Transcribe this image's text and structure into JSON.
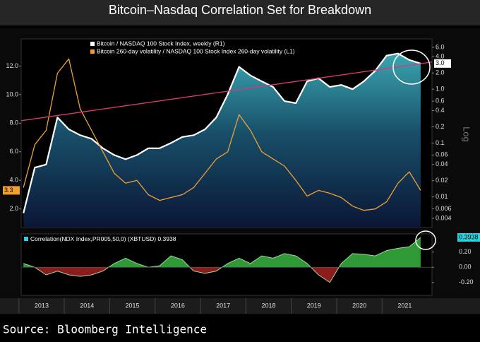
{
  "title": "Bitcoin–Nasdaq Correlation Set for Breakdown",
  "source": "Source: Bloomberg Intelligence",
  "chart_data": [
    {
      "type": "line",
      "x": [
        2013.1,
        2013.35,
        2013.6,
        2013.85,
        2014.1,
        2014.35,
        2014.6,
        2014.85,
        2015.1,
        2015.35,
        2015.6,
        2015.85,
        2016.1,
        2016.35,
        2016.6,
        2016.85,
        2017.1,
        2017.35,
        2017.6,
        2017.85,
        2018.1,
        2018.35,
        2018.6,
        2018.85,
        2019.1,
        2019.35,
        2019.6,
        2019.85,
        2020.1,
        2020.35,
        2020.6,
        2020.85,
        2021.1,
        2021.35,
        2021.6,
        2021.85
      ],
      "xlim": [
        2013.05,
        2022.1
      ],
      "ylim": [
        0.7,
        13.9
      ],
      "yticks": [
        {
          "value": 2,
          "label": "2.0"
        },
        {
          "value": 4,
          "label": "4.0"
        },
        {
          "value": 6,
          "label": "6.0"
        },
        {
          "value": 8,
          "label": "8.0"
        },
        {
          "value": 10,
          "label": "10.0"
        },
        {
          "value": 12,
          "label": "12.0"
        }
      ],
      "y2lim": [
        0.0027,
        8.6
      ],
      "y2_scale": "log",
      "y2_label": "Log",
      "y2ticks": [
        {
          "value": 6,
          "label": "6.0"
        },
        {
          "value": 4,
          "label": "4.0"
        },
        {
          "value": 2,
          "label": "2.0"
        },
        {
          "value": 1,
          "label": "1.0"
        },
        0.6,
        0.4,
        0.2,
        0.1,
        0.06,
        0.04,
        0.02,
        0.01,
        0.006,
        0.004
      ],
      "series": [
        {
          "name": "Bitcoin / NASDAQ 100 Stock Index, weekly (R1)",
          "color": "#ffffff",
          "axis": "y2",
          "fill": true,
          "values": [
            0.005,
            0.035,
            0.04,
            0.3,
            0.18,
            0.14,
            0.12,
            0.08,
            0.06,
            0.05,
            0.06,
            0.08,
            0.08,
            0.1,
            0.13,
            0.14,
            0.18,
            0.3,
            0.8,
            2.6,
            1.8,
            1.4,
            1.1,
            0.6,
            0.55,
            1.4,
            1.6,
            1.1,
            1.2,
            1.0,
            1.4,
            2.2,
            4.2,
            4.6,
            3.5,
            3.0
          ],
          "value_labels": [
            null,
            null,
            null,
            null,
            null,
            null,
            null,
            null,
            null,
            null,
            null,
            null,
            null,
            null,
            null,
            null,
            null,
            null,
            null,
            null,
            null,
            null,
            null,
            null,
            null,
            null,
            null,
            null,
            null,
            null,
            null,
            null,
            null,
            null,
            null,
            "3.0"
          ]
        },
        {
          "name": "Bitcoin 260-day volatility / NASDAQ 100 Stock Index 260-day volatility (L1)",
          "color": "#f0a030",
          "axis": "y",
          "fill": false,
          "values": [
            3.5,
            6.5,
            7.5,
            11.5,
            12.5,
            9.0,
            7.5,
            6.0,
            4.5,
            3.8,
            4.0,
            3.0,
            2.6,
            2.8,
            3.0,
            3.5,
            4.5,
            5.5,
            6.0,
            8.6,
            7.5,
            6.0,
            5.5,
            5.0,
            4.0,
            2.9,
            3.3,
            3.1,
            2.8,
            2.2,
            1.9,
            2.0,
            2.5,
            3.8,
            4.6,
            3.3
          ],
          "value_labels": [
            null,
            null,
            null,
            null,
            null,
            null,
            null,
            null,
            null,
            null,
            null,
            null,
            null,
            null,
            null,
            null,
            null,
            null,
            null,
            null,
            null,
            null,
            null,
            null,
            null,
            null,
            null,
            null,
            null,
            null,
            null,
            null,
            null,
            null,
            null,
            "3.3"
          ]
        }
      ],
      "trend_line": {
        "values": [
          0.26,
          3.2
        ],
        "color": "#d63a78",
        "axis": "y2"
      }
    },
    {
      "type": "area",
      "x": [
        2013.1,
        2013.35,
        2013.6,
        2013.85,
        2014.1,
        2014.35,
        2014.6,
        2014.85,
        2015.1,
        2015.35,
        2015.6,
        2015.85,
        2016.1,
        2016.35,
        2016.6,
        2016.85,
        2017.1,
        2017.35,
        2017.6,
        2017.85,
        2018.1,
        2018.35,
        2018.6,
        2018.85,
        2019.1,
        2019.35,
        2019.6,
        2019.85,
        2020.1,
        2020.35,
        2020.6,
        2020.85,
        2021.1,
        2021.35,
        2021.6,
        2021.85
      ],
      "xlim": [
        2013.05,
        2022.1
      ],
      "xticks": [
        {
          "value": 2013,
          "label": "2013"
        },
        {
          "value": 2014,
          "label": "2014"
        },
        {
          "value": 2015,
          "label": "2015"
        },
        {
          "value": 2016,
          "label": "2016"
        },
        {
          "value": 2017,
          "label": "2017"
        },
        {
          "value": 2018,
          "label": "2018"
        },
        {
          "value": 2019,
          "label": "2019"
        },
        {
          "value": 2020,
          "label": "2020"
        },
        {
          "value": 2021,
          "label": "2021"
        }
      ],
      "ylim": [
        -0.37,
        0.44
      ],
      "yticks": [
        {
          "value": -0.2,
          "label": "-0.20"
        },
        {
          "value": 0,
          "label": "0.00"
        },
        {
          "value": 0.2,
          "label": "0.20"
        }
      ],
      "series": [
        {
          "name": "Correlation(NDX Index,PR005,50,0) (XBTUSD) 0.3938",
          "color": "#2f9a35",
          "negative_color": "#8c1c1c",
          "legend_color": "#29d4e0",
          "values": [
            0.05,
            0.0,
            -0.1,
            -0.05,
            -0.1,
            -0.12,
            -0.1,
            -0.05,
            0.05,
            0.12,
            0.05,
            0.0,
            0.02,
            0.15,
            0.1,
            -0.05,
            -0.08,
            -0.05,
            0.05,
            0.12,
            0.05,
            0.15,
            0.12,
            0.18,
            0.15,
            0.05,
            -0.1,
            -0.2,
            0.05,
            0.18,
            0.17,
            0.15,
            0.22,
            0.25,
            0.27,
            0.3938
          ]
        }
      ]
    }
  ]
}
